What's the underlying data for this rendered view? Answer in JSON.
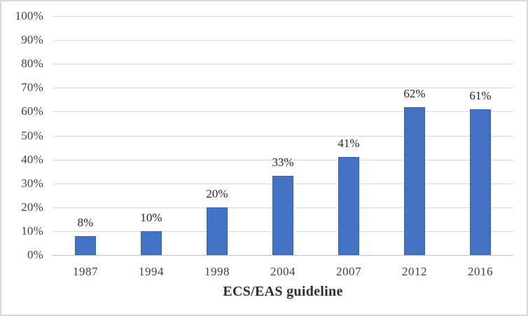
{
  "figure": {
    "background": "#ffffff",
    "frame_border_color": "#dadada"
  },
  "chart_data": {
    "type": "bar",
    "categories": [
      "1987",
      "1994",
      "1998",
      "2004",
      "2007",
      "2012",
      "2016"
    ],
    "values": [
      8,
      10,
      20,
      33,
      41,
      62,
      61
    ],
    "data_labels": [
      "8%",
      "10%",
      "20%",
      "33%",
      "41%",
      "62%",
      "61%"
    ],
    "title": "",
    "xlabel": "ECS/EAS guideline",
    "ylabel": "",
    "ylim": [
      0,
      100
    ],
    "ytick_step": 10,
    "ytick_labels": [
      "0%",
      "10%",
      "20%",
      "30%",
      "40%",
      "50%",
      "60%",
      "70%",
      "80%",
      "90%",
      "100%"
    ],
    "grid": true,
    "legend": "none",
    "bar_color": "#4472c4",
    "bar_border_color": "#3263bd",
    "gridline_color": "#d9d9d9",
    "axis_line_color": "#c3c3c3",
    "tick_text_color": "#3f3f3f",
    "label_text_color": "#262626"
  }
}
